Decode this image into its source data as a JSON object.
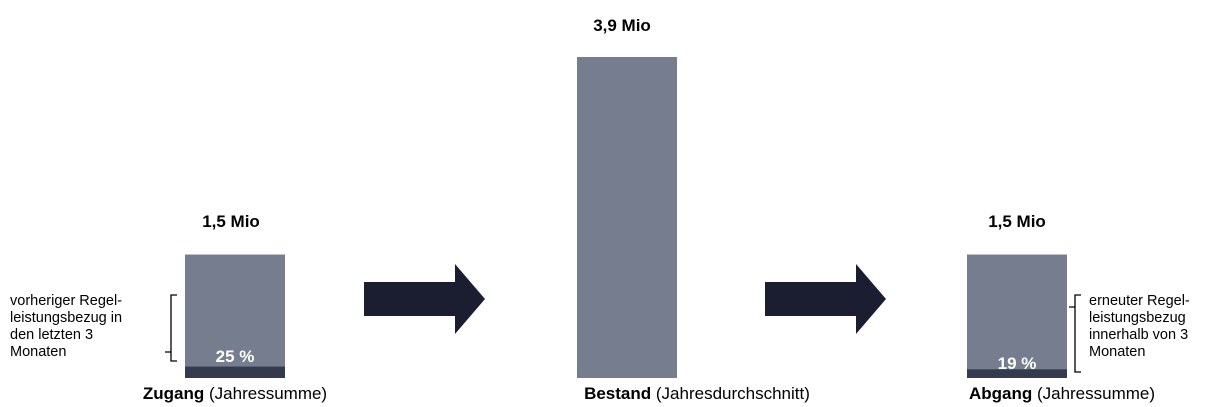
{
  "colors": {
    "bar": "#757d8e",
    "segment": "#353b4e",
    "arrow": "#1b1e30"
  },
  "chart_data": {
    "type": "bar",
    "unit": "Mio",
    "categories": [
      {
        "name": "Zugang",
        "qualifier": "(Jahressumme)",
        "value": 1.5,
        "value_label": "1,5 Mio",
        "share": 0.25,
        "share_label": "25 %",
        "note": [
          "vorheriger Regel-",
          "leistungsbezug in",
          "den letzten 3",
          "Monaten"
        ]
      },
      {
        "name": "Bestand",
        "qualifier": "(Jahresdurchschnitt)",
        "value": 3.9,
        "value_label": "3,9 Mio"
      },
      {
        "name": "Abgang",
        "qualifier": "(Jahressumme)",
        "value": 1.5,
        "value_label": "1,5 Mio",
        "share": 0.19,
        "share_label": "19 %",
        "note": [
          "erneuter Regel-",
          "leistungsbezug",
          "innerhalb von 3",
          "Monaten"
        ]
      }
    ]
  }
}
